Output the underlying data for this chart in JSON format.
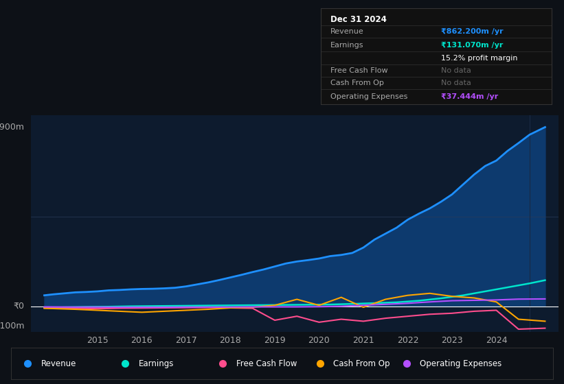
{
  "bg_color": "#0d1117",
  "plot_bg_color": "#0d1b2e",
  "grid_color": "#2a3a5a",
  "zero_line_color": "#ffffff",
  "y_label_900": "₹900m",
  "y_label_0": "₹0",
  "y_label_neg100": "-₹100m",
  "ylim": [
    -130,
    960
  ],
  "xlim": [
    2013.5,
    2025.4
  ],
  "x_ticks": [
    2015,
    2016,
    2017,
    2018,
    2019,
    2020,
    2021,
    2022,
    2023,
    2024
  ],
  "series": {
    "Revenue": {
      "color": "#1e90ff",
      "fill_color": "#0d3a6e",
      "linewidth": 2.0,
      "x": [
        2013.8,
        2014.0,
        2014.25,
        2014.5,
        2014.75,
        2015.0,
        2015.25,
        2015.5,
        2015.75,
        2016.0,
        2016.25,
        2016.5,
        2016.75,
        2017.0,
        2017.25,
        2017.5,
        2017.75,
        2018.0,
        2018.25,
        2018.5,
        2018.75,
        2019.0,
        2019.25,
        2019.5,
        2019.75,
        2020.0,
        2020.25,
        2020.5,
        2020.75,
        2021.0,
        2021.25,
        2021.5,
        2021.75,
        2022.0,
        2022.25,
        2022.5,
        2022.75,
        2023.0,
        2023.25,
        2023.5,
        2023.75,
        2024.0,
        2024.25,
        2024.5,
        2024.75,
        2025.1
      ],
      "y": [
        55,
        60,
        65,
        70,
        72,
        75,
        80,
        82,
        85,
        87,
        88,
        90,
        93,
        100,
        110,
        120,
        132,
        145,
        158,
        172,
        185,
        200,
        215,
        225,
        232,
        240,
        252,
        258,
        268,
        295,
        335,
        365,
        395,
        435,
        465,
        492,
        525,
        562,
        612,
        662,
        705,
        732,
        780,
        820,
        862,
        900
      ]
    },
    "Earnings": {
      "color": "#00e5cc",
      "linewidth": 1.8,
      "x": [
        2013.8,
        2014.25,
        2014.75,
        2015.25,
        2015.75,
        2016.25,
        2016.75,
        2017.25,
        2017.75,
        2018.25,
        2018.75,
        2019.25,
        2019.75,
        2020.25,
        2020.75,
        2021.25,
        2021.75,
        2022.25,
        2022.75,
        2023.25,
        2023.75,
        2024.25,
        2024.75,
        2025.1
      ],
      "y": [
        -8,
        -5,
        -3,
        -2,
        0,
        1,
        2,
        3,
        4,
        5,
        6,
        7,
        8,
        9,
        12,
        16,
        20,
        28,
        40,
        55,
        75,
        95,
        115,
        131
      ]
    },
    "FreeCashFlow": {
      "color": "#ff4d8d",
      "linewidth": 1.5,
      "x": [
        2013.8,
        2014.5,
        2015.0,
        2015.5,
        2016.0,
        2016.5,
        2017.0,
        2017.5,
        2018.0,
        2018.5,
        2019.0,
        2019.5,
        2020.0,
        2020.5,
        2021.0,
        2021.5,
        2022.0,
        2022.5,
        2023.0,
        2023.5,
        2024.0,
        2024.5,
        2025.1
      ],
      "y": [
        -8,
        -10,
        -12,
        -10,
        -9,
        -8,
        -7,
        -6,
        -8,
        -10,
        -70,
        -50,
        -80,
        -65,
        -75,
        -60,
        -50,
        -40,
        -35,
        -25,
        -20,
        -115,
        -110
      ]
    },
    "CashFromOp": {
      "color": "#ffa500",
      "linewidth": 1.5,
      "x": [
        2013.8,
        2014.5,
        2015.0,
        2015.5,
        2016.0,
        2016.5,
        2017.0,
        2017.5,
        2018.0,
        2018.5,
        2019.0,
        2019.5,
        2020.0,
        2020.5,
        2021.0,
        2021.5,
        2022.0,
        2022.5,
        2023.0,
        2023.5,
        2024.0,
        2024.5,
        2025.1
      ],
      "y": [
        -10,
        -15,
        -20,
        -25,
        -30,
        -25,
        -20,
        -15,
        -8,
        -5,
        5,
        35,
        5,
        45,
        -5,
        35,
        55,
        65,
        50,
        42,
        22,
        -65,
        -75
      ]
    },
    "OperatingExpenses": {
      "color": "#b44fff",
      "linewidth": 1.5,
      "x": [
        2013.8,
        2014.5,
        2015.0,
        2015.5,
        2016.0,
        2016.5,
        2017.0,
        2017.5,
        2018.0,
        2018.5,
        2019.0,
        2019.5,
        2020.0,
        2020.5,
        2021.0,
        2021.5,
        2022.0,
        2022.5,
        2023.0,
        2023.5,
        2024.0,
        2024.5,
        2025.1
      ],
      "y": [
        -3,
        -4,
        -4,
        -5,
        -5,
        -5,
        -4,
        -4,
        -4,
        -3,
        -3,
        -3,
        -2,
        0,
        5,
        10,
        15,
        22,
        28,
        30,
        32,
        36,
        37
      ]
    }
  },
  "info_box": {
    "date": "Dec 31 2024",
    "rows": [
      {
        "label": "Revenue",
        "value": "₹862.200m /yr",
        "value_color": "#1e90ff"
      },
      {
        "label": "Earnings",
        "value": "₹131.070m /yr",
        "value_color": "#00e5cc"
      },
      {
        "label": "",
        "value": "15.2% profit margin",
        "value_color": "#ffffff"
      },
      {
        "label": "Free Cash Flow",
        "value": "No data",
        "value_color": "#666666"
      },
      {
        "label": "Cash From Op",
        "value": "No data",
        "value_color": "#666666"
      },
      {
        "label": "Operating Expenses",
        "value": "₹37.444m /yr",
        "value_color": "#b44fff"
      }
    ]
  },
  "legend": [
    {
      "label": "Revenue",
      "color": "#1e90ff"
    },
    {
      "label": "Earnings",
      "color": "#00e5cc"
    },
    {
      "label": "Free Cash Flow",
      "color": "#ff4d8d"
    },
    {
      "label": "Cash From Op",
      "color": "#ffa500"
    },
    {
      "label": "Operating Expenses",
      "color": "#b44fff"
    }
  ],
  "vertical_line_x": 2024.75,
  "grid_line_y": 450
}
